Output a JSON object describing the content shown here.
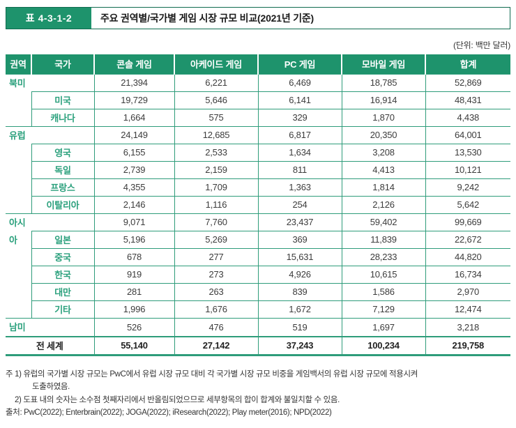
{
  "header": {
    "table_label": "표 4-3-1-2",
    "title": "주요 권역별/국가별 게임 시장 규모 비교(2021년 기준)",
    "unit_note": "(단위: 백만 달러)"
  },
  "colors": {
    "accent_green": "#1e936c",
    "grid_teal": "#2e9c7a",
    "label_green": "#2aa07c",
    "number_text": "#3c3c3c",
    "title_border": "#0f6b4f"
  },
  "table": {
    "headers": [
      "권역",
      "국가",
      "콘솔 게임",
      "아케이드 게임",
      "PC 게임",
      "모바일 게임",
      "합계"
    ],
    "groups": [
      {
        "region": "북미",
        "rows": [
          {
            "country": "",
            "values": [
              "21,394",
              "6,221",
              "6,469",
              "18,785",
              "52,869"
            ]
          },
          {
            "country": "미국",
            "values": [
              "19,729",
              "5,646",
              "6,141",
              "16,914",
              "48,431"
            ]
          },
          {
            "country": "캐나다",
            "values": [
              "1,664",
              "575",
              "329",
              "1,870",
              "4,438"
            ]
          }
        ]
      },
      {
        "region": "유럽",
        "rows": [
          {
            "country": "",
            "values": [
              "24,149",
              "12,685",
              "6,817",
              "20,350",
              "64,001"
            ]
          },
          {
            "country": "영국",
            "values": [
              "6,155",
              "2,533",
              "1,634",
              "3,208",
              "13,530"
            ]
          },
          {
            "country": "독일",
            "values": [
              "2,739",
              "2,159",
              "811",
              "4,413",
              "10,121"
            ]
          },
          {
            "country": "프랑스",
            "values": [
              "4,355",
              "1,709",
              "1,363",
              "1,814",
              "9,242"
            ]
          },
          {
            "country": "이탈리아",
            "values": [
              "2,146",
              "1,116",
              "254",
              "2,126",
              "5,642"
            ]
          }
        ]
      },
      {
        "region": "아시아",
        "rows": [
          {
            "country": "",
            "values": [
              "9,071",
              "7,760",
              "23,437",
              "59,402",
              "99,669"
            ]
          },
          {
            "country": "일본",
            "values": [
              "5,196",
              "5,269",
              "369",
              "11,839",
              "22,672"
            ]
          },
          {
            "country": "중국",
            "values": [
              "678",
              "277",
              "15,631",
              "28,233",
              "44,820"
            ]
          },
          {
            "country": "한국",
            "values": [
              "919",
              "273",
              "4,926",
              "10,615",
              "16,734"
            ]
          },
          {
            "country": "대만",
            "values": [
              "281",
              "263",
              "839",
              "1,586",
              "2,970"
            ]
          },
          {
            "country": "기타",
            "values": [
              "1,996",
              "1,676",
              "1,672",
              "7,129",
              "12,474"
            ]
          }
        ]
      },
      {
        "region": "남미",
        "rows": [
          {
            "country": "",
            "values": [
              "526",
              "476",
              "519",
              "1,697",
              "3,218"
            ]
          }
        ]
      }
    ],
    "world_row": {
      "label": "전 세계",
      "values": [
        "55,140",
        "27,142",
        "37,243",
        "100,234",
        "219,758"
      ]
    }
  },
  "footnotes": {
    "line1": "주 1) 유럽의 국가별 시장 규모는 PwC에서 유럽 시장 규모 대비 각 국가별 시장 규모 비중을 게임백서의 유럽 시장 규모에 적용시켜",
    "line2": "도출하였음.",
    "line3": "2) 도표 내의 숫자는 소수점 첫째자리에서 반올림되었으므로 세부항목의 합이 합계와 불일치할 수 있음.",
    "source": "출처: PwC(2022); Enterbrain(2022); JOGA(2022); iResearch(2022); Play meter(2016); NPD(2022)"
  }
}
